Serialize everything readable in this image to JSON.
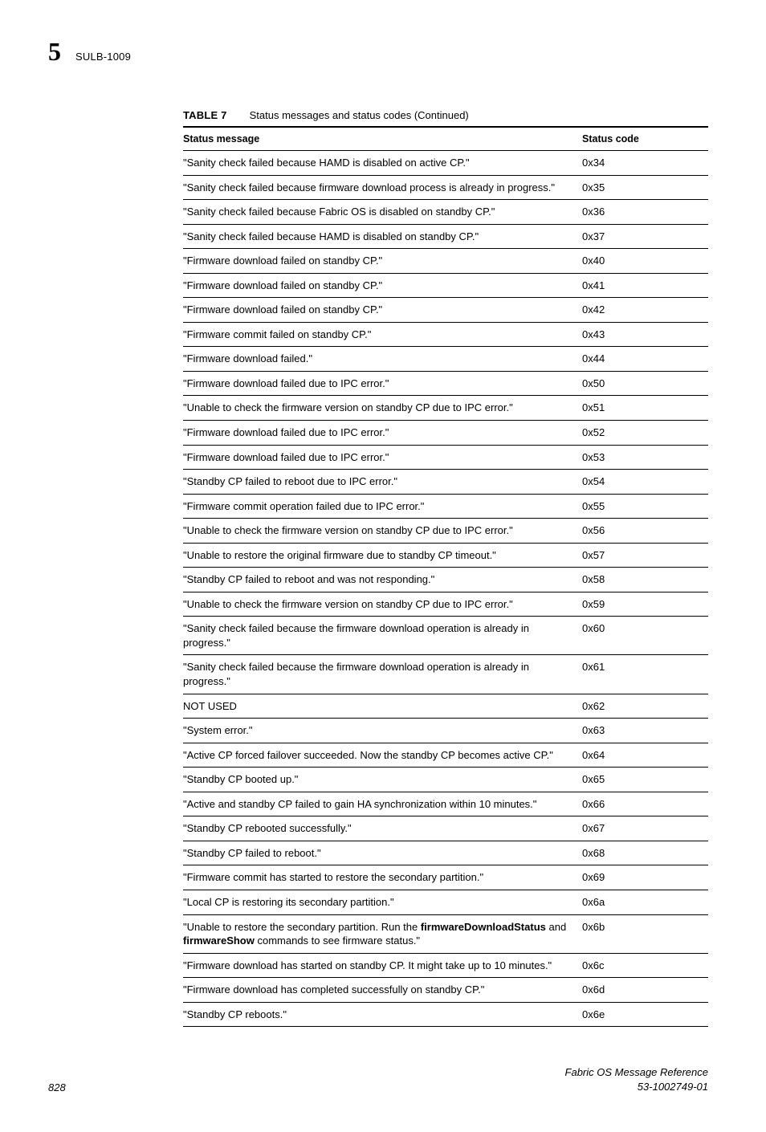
{
  "header": {
    "chapter_number": "5",
    "section_code": "SULB-1009"
  },
  "table": {
    "label": "TABLE 7",
    "title": "Status messages and status codes (Continued)",
    "columns": [
      "Status message",
      "Status code"
    ],
    "rows": [
      {
        "msg": "\"Sanity check failed because HAMD is disabled on active CP.\"",
        "code": "0x34"
      },
      {
        "msg": "\"Sanity check failed because firmware download process is already in progress.\"",
        "code": "0x35"
      },
      {
        "msg": "\"Sanity check failed because Fabric OS is disabled on standby CP.\"",
        "code": "0x36"
      },
      {
        "msg": "\"Sanity check failed because HAMD is disabled on standby CP.\"",
        "code": "0x37"
      },
      {
        "msg": "\"Firmware download failed on standby CP.\"",
        "code": "0x40"
      },
      {
        "msg": "\"Firmware download failed on standby CP.\"",
        "code": "0x41"
      },
      {
        "msg": "\"Firmware download failed on standby CP.\"",
        "code": "0x42"
      },
      {
        "msg": "\"Firmware commit failed on standby CP.\"",
        "code": "0x43"
      },
      {
        "msg": "\"Firmware download failed.\"",
        "code": "0x44"
      },
      {
        "msg": "\"Firmware download failed due to IPC error.\"",
        "code": "0x50"
      },
      {
        "msg": "\"Unable to check the firmware version on standby CP due to IPC error.\"",
        "code": "0x51"
      },
      {
        "msg": "\"Firmware download failed due to IPC error.\"",
        "code": "0x52"
      },
      {
        "msg": "\"Firmware download failed due to IPC error.\"",
        "code": "0x53"
      },
      {
        "msg": "\"Standby CP failed to reboot due to IPC error.\"",
        "code": "0x54"
      },
      {
        "msg": "\"Firmware commit operation failed due to IPC error.\"",
        "code": "0x55"
      },
      {
        "msg": "\"Unable to check the firmware version on standby CP due to IPC error.\"",
        "code": "0x56"
      },
      {
        "msg": "\"Unable to restore the original firmware due to standby CP timeout.\"",
        "code": "0x57"
      },
      {
        "msg": "\"Standby CP failed to reboot and was not responding.\"",
        "code": "0x58"
      },
      {
        "msg": "\"Unable to check the firmware version on standby CP due to IPC error.\"",
        "code": "0x59"
      },
      {
        "msg": "\"Sanity check failed because the firmware download operation is already in progress.\"",
        "code": "0x60"
      },
      {
        "msg": "\"Sanity check failed because the firmware download operation is already in progress.\"",
        "code": "0x61"
      },
      {
        "msg": "NOT USED",
        "code": "0x62"
      },
      {
        "msg": "\"System error.\"",
        "code": "0x63"
      },
      {
        "msg": "\"Active CP forced failover succeeded. Now the standby CP becomes active CP.\"",
        "code": "0x64"
      },
      {
        "msg": "\"Standby CP booted up.\"",
        "code": "0x65"
      },
      {
        "msg": "\"Active and standby CP failed to gain HA synchronization within 10 minutes.\"",
        "code": "0x66"
      },
      {
        "msg": "\"Standby CP rebooted successfully.\"",
        "code": "0x67"
      },
      {
        "msg": "\"Standby CP failed to reboot.\"",
        "code": "0x68"
      },
      {
        "msg": "\"Firmware commit has started to restore the secondary partition.\"",
        "code": "0x69"
      },
      {
        "msg": "\"Local CP is restoring its secondary partition.\"",
        "code": "0x6a"
      },
      {
        "msg_pre": "\"Unable to restore the secondary partition. Run the ",
        "bold1": "firmwareDownloadStatus",
        "mid": " and ",
        "bold2": "firmwareShow",
        "msg_post": " commands to see firmware status.\"",
        "code": "0x6b",
        "rich": true
      },
      {
        "msg": "\"Firmware download has started on standby CP. It might take up to 10 minutes.\"",
        "code": "0x6c"
      },
      {
        "msg": "\"Firmware download has completed successfully on standby CP.\"",
        "code": "0x6d"
      },
      {
        "msg": "\"Standby CP reboots.\"",
        "code": "0x6e"
      }
    ]
  },
  "footer": {
    "page_number": "828",
    "doc_title": "Fabric OS Message Reference",
    "doc_id": "53-1002749-01"
  }
}
